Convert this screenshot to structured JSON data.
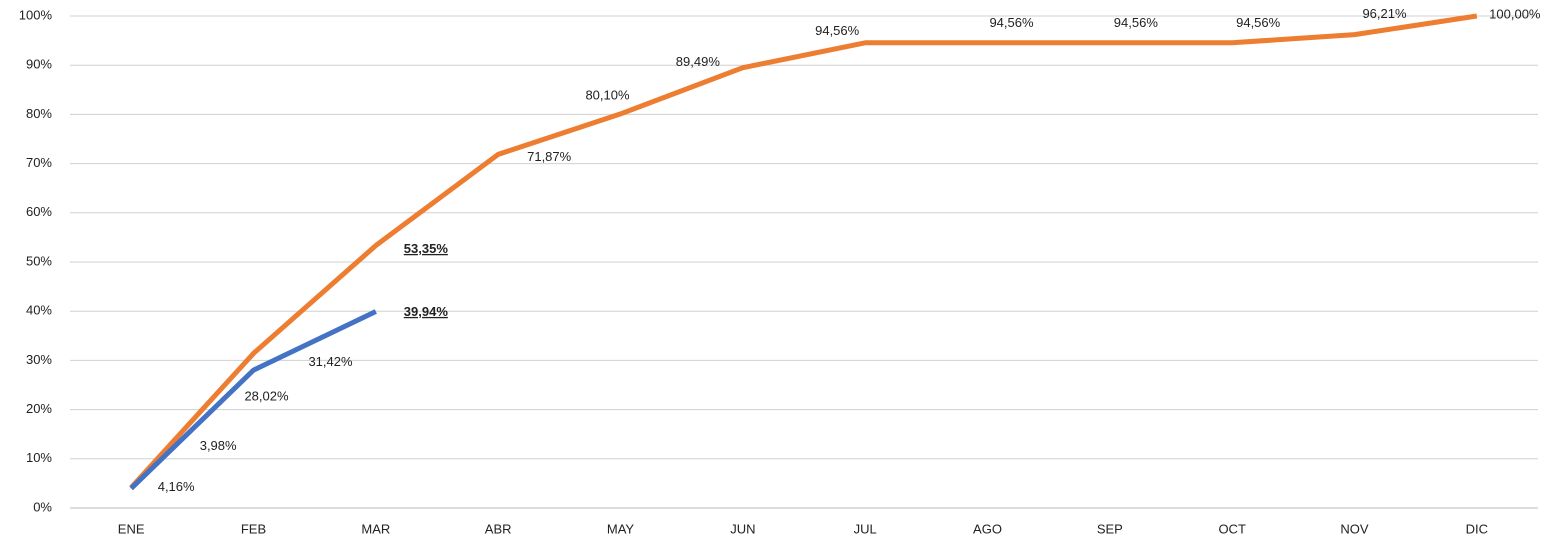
{
  "chart_data": {
    "type": "line",
    "categories": [
      "ENE",
      "FEB",
      "MAR",
      "ABR",
      "MAY",
      "JUN",
      "JUL",
      "AGO",
      "SEP",
      "OCT",
      "NOV",
      "DIC"
    ],
    "series": [
      {
        "color": "#ed7d31",
        "values": [
          4.16,
          31.42,
          53.35,
          71.87,
          80.1,
          89.49,
          94.56,
          94.56,
          94.56,
          94.56,
          96.21,
          100.0
        ],
        "value_labels": [
          "4,16%",
          "31,42%",
          "53,35%",
          "71,87%",
          "80,10%",
          "89,49%",
          "94,56%",
          "94,56%",
          "94,56%",
          "94,56%",
          "96,21%",
          "100,00%"
        ]
      },
      {
        "color": "#4472c4",
        "values": [
          3.98,
          28.02,
          39.94,
          null,
          null,
          null,
          null,
          null,
          null,
          null,
          null,
          null
        ],
        "value_labels": [
          "3,98%",
          "28,02%",
          "39,94%",
          null,
          null,
          null,
          null,
          null,
          null,
          null,
          null,
          null
        ]
      }
    ],
    "ylim": [
      0,
      100
    ],
    "yticks": [
      {
        "value": 0,
        "label": "0%"
      },
      {
        "value": 10,
        "label": "10%"
      },
      {
        "value": 20,
        "label": "20%"
      },
      {
        "value": 30,
        "label": "30%"
      },
      {
        "value": 40,
        "label": "40%"
      },
      {
        "value": 50,
        "label": "50%"
      },
      {
        "value": 60,
        "label": "60%"
      },
      {
        "value": 70,
        "label": "70%"
      },
      {
        "value": 80,
        "label": "80%"
      },
      {
        "value": 90,
        "label": "90%"
      },
      {
        "value": 100,
        "label": "100%"
      }
    ],
    "grid": true
  }
}
